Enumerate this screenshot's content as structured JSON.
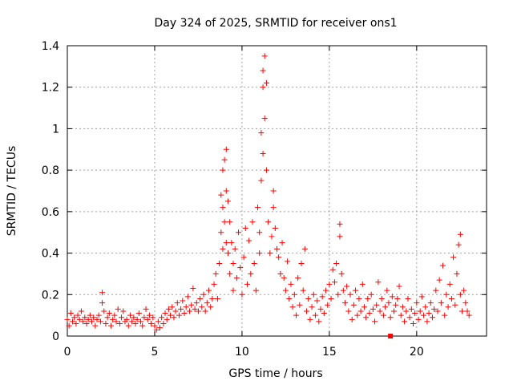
{
  "chart_data": {
    "type": "scatter",
    "title": "Day 324 of 2025, SRMTID for receiver ons1",
    "xlabel": "GPS time / hours",
    "ylabel": "SRMTID / TECUs",
    "xlim": [
      0,
      24
    ],
    "ylim": [
      0,
      1.4
    ],
    "xticks": [
      "0",
      "5",
      "10",
      "15",
      "20"
    ],
    "yticks": [
      "0",
      "0.2",
      "0.4",
      "0.6",
      "0.8",
      "1",
      "1.2",
      "1.4"
    ],
    "grid": true,
    "series": [
      {
        "name": "SRMTID",
        "color": "#ff0000",
        "marker": "plus",
        "points": [
          [
            0.0,
            0.08
          ],
          [
            0.1,
            0.05
          ],
          [
            0.2,
            0.11
          ],
          [
            0.3,
            0.07
          ],
          [
            0.4,
            0.09
          ],
          [
            0.5,
            0.06
          ],
          [
            0.6,
            0.1
          ],
          [
            0.7,
            0.08
          ],
          [
            0.8,
            0.12
          ],
          [
            0.9,
            0.07
          ],
          [
            1.0,
            0.09
          ],
          [
            1.1,
            0.06
          ],
          [
            1.2,
            0.08
          ],
          [
            1.3,
            0.1
          ],
          [
            1.4,
            0.07
          ],
          [
            1.5,
            0.09
          ],
          [
            1.6,
            0.05
          ],
          [
            1.7,
            0.08
          ],
          [
            1.8,
            0.1
          ],
          [
            1.9,
            0.07
          ],
          [
            2.0,
            0.21
          ],
          [
            2.0,
            0.16
          ],
          [
            2.1,
            0.12
          ],
          [
            2.2,
            0.06
          ],
          [
            2.3,
            0.09
          ],
          [
            2.4,
            0.11
          ],
          [
            2.5,
            0.05
          ],
          [
            2.6,
            0.08
          ],
          [
            2.7,
            0.1
          ],
          [
            2.8,
            0.07
          ],
          [
            2.9,
            0.13
          ],
          [
            3.0,
            0.06
          ],
          [
            3.1,
            0.09
          ],
          [
            3.2,
            0.12
          ],
          [
            3.3,
            0.07
          ],
          [
            3.4,
            0.08
          ],
          [
            3.5,
            0.05
          ],
          [
            3.6,
            0.1
          ],
          [
            3.7,
            0.07
          ],
          [
            3.8,
            0.09
          ],
          [
            3.9,
            0.06
          ],
          [
            4.0,
            0.08
          ],
          [
            4.1,
            0.11
          ],
          [
            4.2,
            0.07
          ],
          [
            4.3,
            0.05
          ],
          [
            4.4,
            0.09
          ],
          [
            4.5,
            0.13
          ],
          [
            4.6,
            0.08
          ],
          [
            4.7,
            0.1
          ],
          [
            4.8,
            0.06
          ],
          [
            4.9,
            0.09
          ],
          [
            5.0,
            0.05
          ],
          [
            5.1,
            0.03
          ],
          [
            5.2,
            0.07
          ],
          [
            5.3,
            0.04
          ],
          [
            5.4,
            0.09
          ],
          [
            5.5,
            0.06
          ],
          [
            5.6,
            0.11
          ],
          [
            5.7,
            0.08
          ],
          [
            5.8,
            0.13
          ],
          [
            5.9,
            0.1
          ],
          [
            6.0,
            0.14
          ],
          [
            6.1,
            0.09
          ],
          [
            6.2,
            0.12
          ],
          [
            6.3,
            0.16
          ],
          [
            6.4,
            0.1
          ],
          [
            6.5,
            0.13
          ],
          [
            6.6,
            0.17
          ],
          [
            6.7,
            0.11
          ],
          [
            6.8,
            0.14
          ],
          [
            6.9,
            0.19
          ],
          [
            7.0,
            0.12
          ],
          [
            7.1,
            0.15
          ],
          [
            7.2,
            0.23
          ],
          [
            7.3,
            0.13
          ],
          [
            7.4,
            0.16
          ],
          [
            7.5,
            0.12
          ],
          [
            7.6,
            0.18
          ],
          [
            7.7,
            0.14
          ],
          [
            7.8,
            0.2
          ],
          [
            7.9,
            0.12
          ],
          [
            8.0,
            0.16
          ],
          [
            8.1,
            0.22
          ],
          [
            8.2,
            0.14
          ],
          [
            8.3,
            0.18
          ],
          [
            8.4,
            0.25
          ],
          [
            8.5,
            0.3
          ],
          [
            8.6,
            0.18
          ],
          [
            8.7,
            0.35
          ],
          [
            8.8,
            0.5
          ],
          [
            8.8,
            0.68
          ],
          [
            8.9,
            0.8
          ],
          [
            8.9,
            0.62
          ],
          [
            8.9,
            0.42
          ],
          [
            9.0,
            0.85
          ],
          [
            9.0,
            0.55
          ],
          [
            9.1,
            0.9
          ],
          [
            9.1,
            0.7
          ],
          [
            9.1,
            0.45
          ],
          [
            9.2,
            0.65
          ],
          [
            9.2,
            0.4
          ],
          [
            9.3,
            0.55
          ],
          [
            9.3,
            0.3
          ],
          [
            9.4,
            0.45
          ],
          [
            9.5,
            0.35
          ],
          [
            9.5,
            0.22
          ],
          [
            9.6,
            0.42
          ],
          [
            9.7,
            0.28
          ],
          [
            9.8,
            0.5
          ],
          [
            9.9,
            0.33
          ],
          [
            10.0,
            0.2
          ],
          [
            10.1,
            0.38
          ],
          [
            10.2,
            0.52
          ],
          [
            10.3,
            0.25
          ],
          [
            10.4,
            0.46
          ],
          [
            10.5,
            0.3
          ],
          [
            10.6,
            0.55
          ],
          [
            10.7,
            0.35
          ],
          [
            10.8,
            0.22
          ],
          [
            10.9,
            0.62
          ],
          [
            11.0,
            0.5
          ],
          [
            11.0,
            0.4
          ],
          [
            11.1,
            0.75
          ],
          [
            11.1,
            0.98
          ],
          [
            11.2,
            1.2
          ],
          [
            11.2,
            0.88
          ],
          [
            11.2,
            1.28
          ],
          [
            11.3,
            1.35
          ],
          [
            11.3,
            1.05
          ],
          [
            11.4,
            1.22
          ],
          [
            11.4,
            0.8
          ],
          [
            11.5,
            0.55
          ],
          [
            11.6,
            0.4
          ],
          [
            11.7,
            0.48
          ],
          [
            11.8,
            0.7
          ],
          [
            11.8,
            0.62
          ],
          [
            11.9,
            0.52
          ],
          [
            12.0,
            0.42
          ],
          [
            12.1,
            0.38
          ],
          [
            12.2,
            0.3
          ],
          [
            12.3,
            0.45
          ],
          [
            12.4,
            0.28
          ],
          [
            12.5,
            0.22
          ],
          [
            12.6,
            0.36
          ],
          [
            12.7,
            0.18
          ],
          [
            12.8,
            0.25
          ],
          [
            12.9,
            0.14
          ],
          [
            13.0,
            0.2
          ],
          [
            13.1,
            0.1
          ],
          [
            13.2,
            0.28
          ],
          [
            13.3,
            0.15
          ],
          [
            13.4,
            0.35
          ],
          [
            13.5,
            0.22
          ],
          [
            13.6,
            0.42
          ],
          [
            13.7,
            0.12
          ],
          [
            13.8,
            0.18
          ],
          [
            13.9,
            0.08
          ],
          [
            14.0,
            0.14
          ],
          [
            14.1,
            0.2
          ],
          [
            14.2,
            0.1
          ],
          [
            14.3,
            0.17
          ],
          [
            14.4,
            0.07
          ],
          [
            14.5,
            0.13
          ],
          [
            14.6,
            0.19
          ],
          [
            14.7,
            0.11
          ],
          [
            14.8,
            0.22
          ],
          [
            14.9,
            0.15
          ],
          [
            15.0,
            0.25
          ],
          [
            15.1,
            0.18
          ],
          [
            15.2,
            0.32
          ],
          [
            15.3,
            0.26
          ],
          [
            15.4,
            0.35
          ],
          [
            15.5,
            0.2
          ],
          [
            15.6,
            0.48
          ],
          [
            15.6,
            0.54
          ],
          [
            15.7,
            0.3
          ],
          [
            15.8,
            0.22
          ],
          [
            15.9,
            0.16
          ],
          [
            16.0,
            0.24
          ],
          [
            16.1,
            0.12
          ],
          [
            16.2,
            0.2
          ],
          [
            16.3,
            0.08
          ],
          [
            16.4,
            0.15
          ],
          [
            16.5,
            0.22
          ],
          [
            16.6,
            0.1
          ],
          [
            16.7,
            0.18
          ],
          [
            16.8,
            0.12
          ],
          [
            16.9,
            0.25
          ],
          [
            17.0,
            0.14
          ],
          [
            17.1,
            0.09
          ],
          [
            17.2,
            0.18
          ],
          [
            17.3,
            0.11
          ],
          [
            17.4,
            0.2
          ],
          [
            17.5,
            0.13
          ],
          [
            17.6,
            0.07
          ],
          [
            17.7,
            0.15
          ],
          [
            17.8,
            0.26
          ],
          [
            17.9,
            0.12
          ],
          [
            18.0,
            0.18
          ],
          [
            18.1,
            0.1
          ],
          [
            18.2,
            0.14
          ],
          [
            18.3,
            0.22
          ],
          [
            18.4,
            0.16
          ],
          [
            18.5,
            0.09
          ],
          [
            18.6,
            0.19
          ],
          [
            18.7,
            0.12
          ],
          [
            18.8,
            0.15
          ],
          [
            18.9,
            0.18
          ],
          [
            19.0,
            0.24
          ],
          [
            19.1,
            0.1
          ],
          [
            19.2,
            0.14
          ],
          [
            19.3,
            0.07
          ],
          [
            19.4,
            0.12
          ],
          [
            19.5,
            0.18
          ],
          [
            19.6,
            0.09
          ],
          [
            19.7,
            0.13
          ],
          [
            19.8,
            0.06
          ],
          [
            19.9,
            0.11
          ],
          [
            20.0,
            0.16
          ],
          [
            20.1,
            0.08
          ],
          [
            20.2,
            0.12
          ],
          [
            20.3,
            0.19
          ],
          [
            20.4,
            0.1
          ],
          [
            20.5,
            0.14
          ],
          [
            20.6,
            0.07
          ],
          [
            20.7,
            0.11
          ],
          [
            20.8,
            0.16
          ],
          [
            20.9,
            0.09
          ],
          [
            21.0,
            0.13
          ],
          [
            21.1,
            0.22
          ],
          [
            21.2,
            0.12
          ],
          [
            21.3,
            0.27
          ],
          [
            21.4,
            0.16
          ],
          [
            21.5,
            0.34
          ],
          [
            21.6,
            0.1
          ],
          [
            21.7,
            0.2
          ],
          [
            21.8,
            0.14
          ],
          [
            21.9,
            0.25
          ],
          [
            22.0,
            0.18
          ],
          [
            22.1,
            0.38
          ],
          [
            22.2,
            0.15
          ],
          [
            22.3,
            0.3
          ],
          [
            22.4,
            0.44
          ],
          [
            22.5,
            0.2
          ],
          [
            22.5,
            0.49
          ],
          [
            22.6,
            0.12
          ],
          [
            22.7,
            0.22
          ],
          [
            22.8,
            0.16
          ],
          [
            22.9,
            0.12
          ],
          [
            23.0,
            0.1
          ]
        ],
        "outliers": [
          [
            18.5,
            0.0
          ]
        ]
      }
    ]
  }
}
